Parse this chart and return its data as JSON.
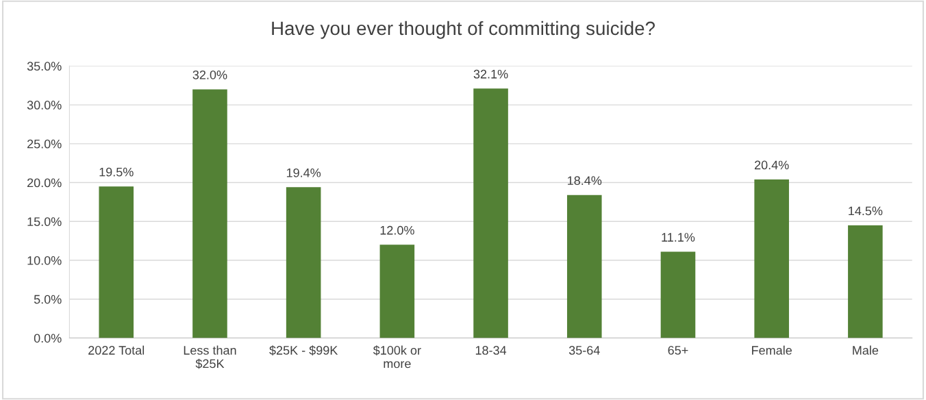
{
  "chart_data": {
    "type": "bar",
    "title": "Have you ever thought of committing suicide?",
    "categories": [
      "2022 Total",
      "Less than\n$25K",
      "$25K - $99K",
      "$100k or\nmore",
      "18-34",
      "35-64",
      "65+",
      "Female",
      "Male"
    ],
    "values": [
      19.5,
      32.0,
      19.4,
      12.0,
      32.1,
      18.4,
      11.1,
      20.4,
      14.5
    ],
    "value_labels": [
      "19.5%",
      "32.0%",
      "19.4%",
      "12.0%",
      "32.1%",
      "18.4%",
      "11.1%",
      "20.4%",
      "14.5%"
    ],
    "color": "#538135",
    "ylim": [
      0,
      35
    ],
    "yticks": [
      {
        "value": 0,
        "label": "0.0%"
      },
      {
        "value": 5,
        "label": "5.0%"
      },
      {
        "value": 10,
        "label": "10.0%"
      },
      {
        "value": 15,
        "label": "15.0%"
      },
      {
        "value": 20,
        "label": "20.0%"
      },
      {
        "value": 25,
        "label": "25.0%"
      },
      {
        "value": 30,
        "label": "30.0%"
      },
      {
        "value": 35,
        "label": "35.0%"
      }
    ],
    "grid": "y",
    "legend": false
  }
}
